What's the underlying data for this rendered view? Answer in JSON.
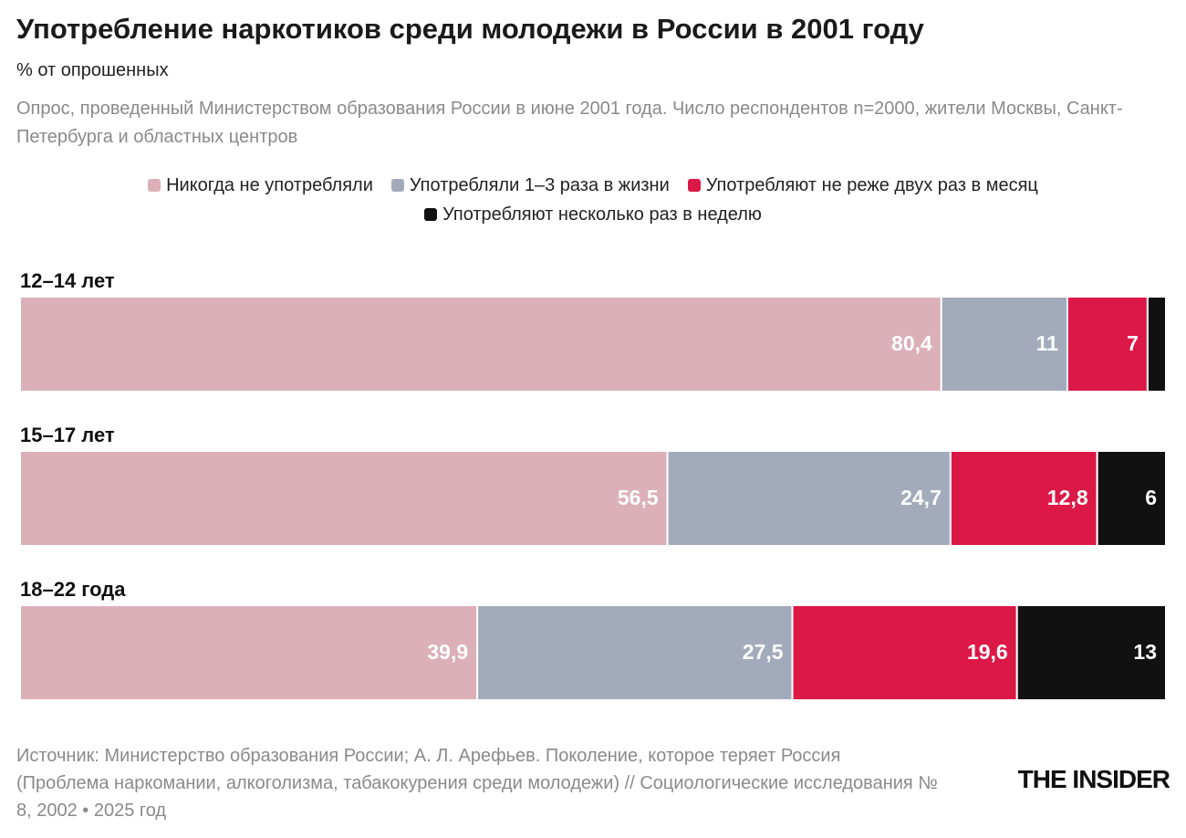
{
  "chart_data": {
    "type": "stacked-bar-horizontal",
    "title": "Употребление наркотиков среди молодежи в России в 2001 году",
    "subtitle": "% от опрошенных",
    "description": "Опрос, проведенный Министерством образования России в июне 2001 года. Число респондентов n=2000, жители Москвы, Санкт-Петербурга и областных центров",
    "categories": [
      "12–14 лет",
      "15–17 лет",
      "18–22 года"
    ],
    "series": [
      {
        "name": "Никогда не употребляли",
        "color": "#dcb0b9",
        "values": [
          80.4,
          56.5,
          39.9
        ],
        "value_labels": [
          "80,4",
          "56,5",
          "39,9"
        ]
      },
      {
        "name": "Употребляли 1–3 раза в жизни",
        "color": "#a3aabb",
        "values": [
          11,
          24.7,
          27.5
        ],
        "value_labels": [
          "11",
          "24,7",
          "27,5"
        ]
      },
      {
        "name": "Употребляют не реже двух раз в месяц",
        "color": "#dc1846",
        "values": [
          7,
          12.8,
          19.6
        ],
        "value_labels": [
          "7",
          "12,8",
          "19,6"
        ]
      },
      {
        "name": "Употребляют несколько раз в неделю",
        "color": "#111111",
        "values": [
          1.6,
          6,
          13
        ],
        "value_labels": [
          null,
          "6",
          "13"
        ]
      }
    ],
    "xlim": [
      0,
      100
    ],
    "source": "Источник: Министерство образования России; А. Л. Арефьев. Поколение, которое теряет Россия (Проблема наркомании, алкоголизма, табакокурения среди молодежи) // Социологические исследования № 8, 2002 • 2025 год",
    "logo": "THE INSIDER"
  }
}
